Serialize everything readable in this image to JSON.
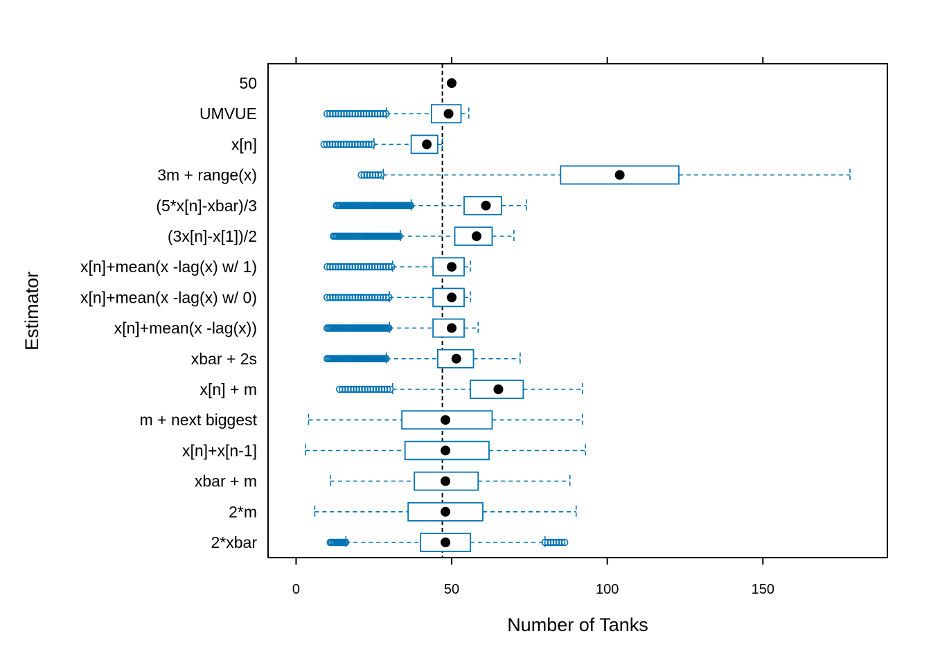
{
  "chart_data": {
    "type": "boxplot",
    "xlabel": "Number of Tanks",
    "ylabel": "Estimator",
    "xlim": [
      -9,
      190
    ],
    "xticks": [
      0,
      50,
      100,
      150
    ],
    "xtick_labels": [
      "0",
      "50",
      "100",
      "150"
    ],
    "reference_line": 47,
    "colors": {
      "box": "#0072B2",
      "median": "#000000",
      "reference": "#000000"
    },
    "categories": [
      "50",
      "UMVUE",
      "x[n]",
      "3m + range(x)",
      "(5*x[n]-xbar)/3",
      "(3x[n]-x[1])/2",
      "x[n]+mean(x -lag(x) w/ 1)",
      "x[n]+mean(x -lag(x) w/ 0)",
      "x[n]+mean(x -lag(x))",
      "xbar + 2s",
      "x[n] + m",
      "m + next biggest",
      "x[n]+x[n-1]",
      "xbar + m",
      "2*m",
      "2*xbar"
    ],
    "boxes": [
      {
        "whisker_low": 50,
        "q1": 50,
        "median": 50,
        "q3": 50,
        "whisker_high": 50,
        "outlier_low": null,
        "outlier_high": null,
        "dense_low": false,
        "dense_high": false
      },
      {
        "whisker_low": 29,
        "q1": 43.5,
        "median": 49,
        "q3": 53,
        "whisker_high": 55.5,
        "outlier_low": [
          10,
          29
        ],
        "outlier_high": null,
        "dense_low": false,
        "dense_high": false
      },
      {
        "whisker_low": 25,
        "q1": 37,
        "median": 42,
        "q3": 45.5,
        "whisker_high": 47,
        "outlier_low": [
          9,
          25
        ],
        "outlier_high": null,
        "dense_low": false,
        "dense_high": false
      },
      {
        "whisker_low": 28,
        "q1": 85,
        "median": 104,
        "q3": 123,
        "whisker_high": 178,
        "outlier_low": [
          21,
          28
        ],
        "outlier_high": null,
        "dense_low": false,
        "dense_high": false
      },
      {
        "whisker_low": 37,
        "q1": 54,
        "median": 61,
        "q3": 66,
        "whisker_high": 74,
        "outlier_low": [
          13,
          37
        ],
        "outlier_high": null,
        "dense_low": true,
        "dense_high": false
      },
      {
        "whisker_low": 33.5,
        "q1": 51,
        "median": 58,
        "q3": 63,
        "whisker_high": 70,
        "outlier_low": [
          12,
          33.5
        ],
        "outlier_high": null,
        "dense_low": true,
        "dense_high": false
      },
      {
        "whisker_low": 31,
        "q1": 44,
        "median": 50,
        "q3": 54,
        "whisker_high": 56,
        "outlier_low": [
          10,
          31
        ],
        "outlier_high": null,
        "dense_low": false,
        "dense_high": false
      },
      {
        "whisker_low": 30,
        "q1": 44,
        "median": 50,
        "q3": 54,
        "whisker_high": 56,
        "outlier_low": [
          10,
          30
        ],
        "outlier_high": null,
        "dense_low": false,
        "dense_high": false
      },
      {
        "whisker_low": 30,
        "q1": 44,
        "median": 50,
        "q3": 54,
        "whisker_high": 58.5,
        "outlier_low": [
          10,
          30
        ],
        "outlier_high": null,
        "dense_low": true,
        "dense_high": false
      },
      {
        "whisker_low": 29,
        "q1": 45.5,
        "median": 51.5,
        "q3": 57,
        "whisker_high": 72,
        "outlier_low": [
          10,
          29
        ],
        "outlier_high": null,
        "dense_low": true,
        "dense_high": false
      },
      {
        "whisker_low": 31,
        "q1": 56,
        "median": 65,
        "q3": 73,
        "whisker_high": 92,
        "outlier_low": [
          14,
          31
        ],
        "outlier_high": null,
        "dense_low": false,
        "dense_high": false
      },
      {
        "whisker_low": 4,
        "q1": 34,
        "median": 48,
        "q3": 63,
        "whisker_high": 92,
        "outlier_low": null,
        "outlier_high": null,
        "dense_low": false,
        "dense_high": false
      },
      {
        "whisker_low": 3,
        "q1": 35,
        "median": 48,
        "q3": 62,
        "whisker_high": 93,
        "outlier_low": null,
        "outlier_high": null,
        "dense_low": false,
        "dense_high": false
      },
      {
        "whisker_low": 11,
        "q1": 38,
        "median": 48,
        "q3": 58.5,
        "whisker_high": 88,
        "outlier_low": null,
        "outlier_high": null,
        "dense_low": false,
        "dense_high": false
      },
      {
        "whisker_low": 6,
        "q1": 36,
        "median": 48,
        "q3": 60,
        "whisker_high": 90,
        "outlier_low": null,
        "outlier_high": null,
        "dense_low": false,
        "dense_high": false
      },
      {
        "whisker_low": 16,
        "q1": 40,
        "median": 48,
        "q3": 56,
        "whisker_high": 80,
        "outlier_low": [
          11,
          16
        ],
        "outlier_high": [
          80,
          87
        ],
        "dense_low": true,
        "dense_high": false
      }
    ]
  }
}
